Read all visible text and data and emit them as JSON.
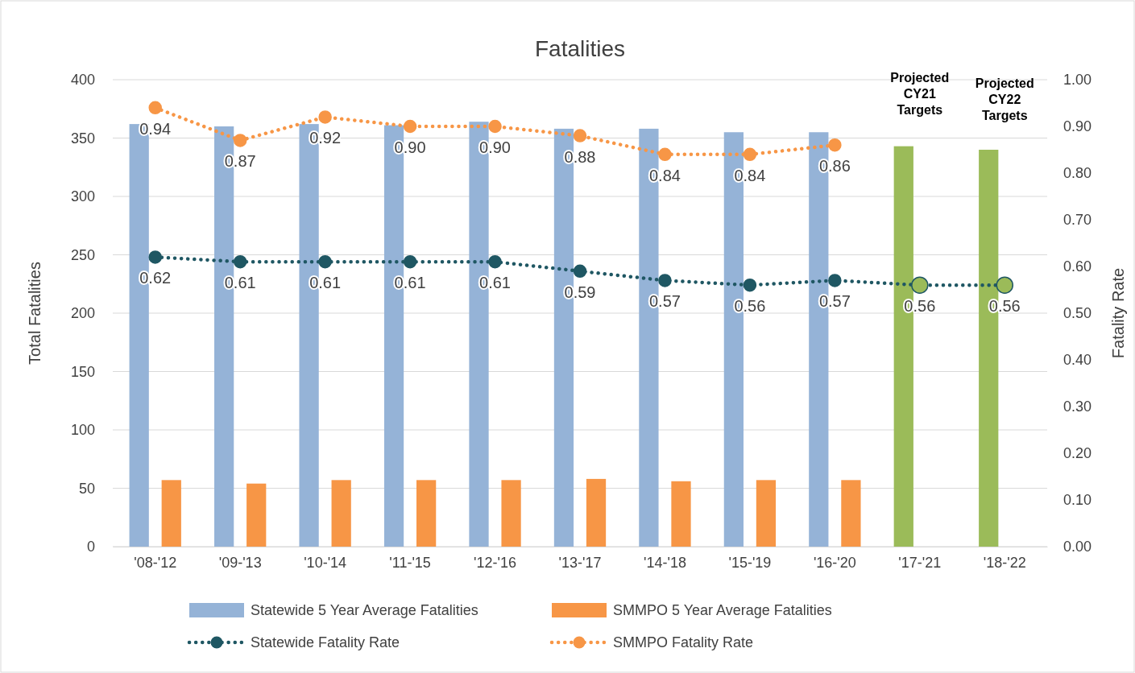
{
  "chart_data": {
    "type": "bar",
    "title": "Fatalities",
    "ylabel": "Total Fatalities",
    "y2label": "Fatality Rate",
    "categories": [
      "'08-'12",
      "'09-'13",
      "'10-'14",
      "'11-'15",
      "'12-'16",
      "'13-'17",
      "'14-'18",
      "'15-'19",
      "'16-'20",
      "'17-'21",
      "'18-'22"
    ],
    "series": [
      {
        "name": "Statewide 5 Year Average Fatalities",
        "color": "#95b3d7",
        "colors": [
          "#95b3d7",
          "#95b3d7",
          "#95b3d7",
          "#95b3d7",
          "#95b3d7",
          "#95b3d7",
          "#95b3d7",
          "#95b3d7",
          "#95b3d7",
          "#9bbb59",
          "#9bbb59"
        ],
        "values": [
          362,
          360,
          362,
          361,
          364,
          358,
          358,
          355,
          355,
          343,
          340
        ]
      },
      {
        "name": "SMMPO 5 Year Average Fatalities",
        "color": "#f79646",
        "values": [
          57,
          54,
          57,
          57,
          57,
          58,
          56,
          57,
          57,
          null,
          null
        ]
      },
      {
        "name": "Statewide Fatality Rate",
        "type": "line",
        "axis": "y2",
        "color": "#1f5763",
        "colors": [
          "#1f5763",
          "#1f5763",
          "#1f5763",
          "#1f5763",
          "#1f5763",
          "#1f5763",
          "#1f5763",
          "#1f5763",
          "#1f5763",
          "#9bbb59",
          "#9bbb59"
        ],
        "values": [
          0.62,
          0.61,
          0.61,
          0.61,
          0.61,
          0.59,
          0.57,
          0.56,
          0.57,
          0.56,
          0.56
        ],
        "value_labels": [
          "0.62",
          "0.61",
          "0.61",
          "0.61",
          "0.61",
          "0.59",
          "0.57",
          "0.56",
          "0.57",
          "0.56",
          "0.56"
        ]
      },
      {
        "name": "SMMPO Fatality Rate",
        "type": "line",
        "axis": "y2",
        "color": "#f79646",
        "values": [
          0.94,
          0.87,
          0.92,
          0.9,
          0.9,
          0.88,
          0.84,
          0.84,
          0.86,
          null,
          null
        ],
        "value_labels": [
          "0.94",
          "0.87",
          "0.92",
          "0.90",
          "0.90",
          "0.88",
          "0.84",
          "0.84",
          "0.86",
          null,
          null
        ]
      }
    ],
    "ylim": [
      0,
      400
    ],
    "yticks": [
      0,
      50,
      100,
      150,
      200,
      250,
      300,
      350,
      400
    ],
    "y2lim": [
      0,
      1
    ],
    "y2ticks": [
      {
        "value": 0,
        "label": "0.00"
      },
      {
        "value": 0.1,
        "label": "0.10"
      },
      {
        "value": 0.2,
        "label": "0.20"
      },
      {
        "value": 0.3,
        "label": "0.30"
      },
      {
        "value": 0.4,
        "label": "0.40"
      },
      {
        "value": 0.5,
        "label": "0.50"
      },
      {
        "value": 0.6,
        "label": "0.60"
      },
      {
        "value": 0.7,
        "label": "0.70"
      },
      {
        "value": 0.8,
        "label": "0.80"
      },
      {
        "value": 0.9,
        "label": "0.90"
      },
      {
        "value": 1,
        "label": "1.00"
      }
    ],
    "annotations": [
      "Projected CY21 Targets",
      "Projected CY22 Targets"
    ],
    "grid": "y",
    "legend": "bottom",
    "marker": "circle",
    "line_style": "dotted"
  }
}
